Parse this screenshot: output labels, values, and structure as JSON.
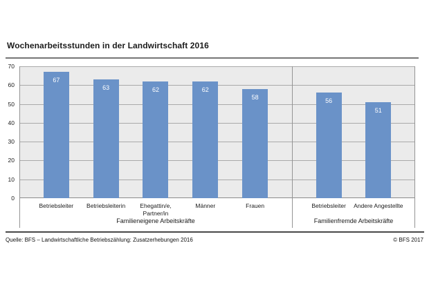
{
  "chart_data": {
    "type": "bar",
    "title": "Wochenarbeitsstunden in der Landwirtschaft 2016",
    "ylabel": "",
    "xlabel": "",
    "ylim": [
      0,
      70
    ],
    "yticks": [
      0,
      10,
      20,
      30,
      40,
      50,
      60,
      70
    ],
    "grid": true,
    "bar_color": "#6a92c8",
    "plot_background": "#ebebeb",
    "value_labels_shown": true,
    "groups": [
      {
        "label": "Familieneigene Arbeitskräfte",
        "categories": [
          "Betriebsleiter",
          "Betriebsleiterin",
          "Ehegattin/e,\nPartner/in",
          "Männer",
          "Frauen"
        ],
        "values": [
          67,
          63,
          62,
          62,
          58
        ]
      },
      {
        "label": "Familienfremde Arbeitskräfte",
        "categories": [
          "Betriebsleiter",
          "Andere Angestellte"
        ],
        "values": [
          56,
          51
        ]
      }
    ]
  },
  "footer": {
    "source": "Quelle: BFS – Landwirtschaftliche Betriebszählung: Zusatzerhebungen 2016",
    "copyright": "© BFS 2017"
  }
}
